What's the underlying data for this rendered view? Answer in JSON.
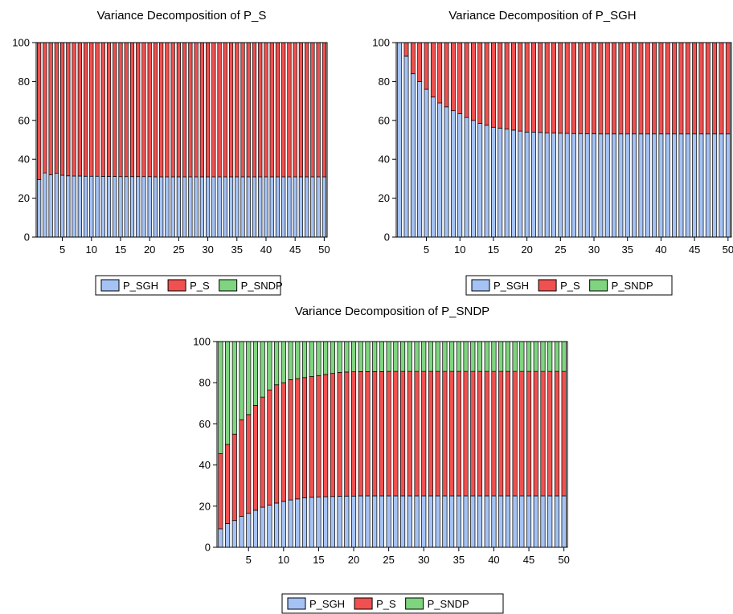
{
  "colors": {
    "P_SGH": "#a4c2f4",
    "P_S": "#f05050",
    "P_SNDP": "#7fd47f"
  },
  "chart_data": [
    {
      "type": "bar",
      "stacked": true,
      "title": "Variance Decomposition of P_S",
      "x": [
        1,
        2,
        3,
        4,
        5,
        6,
        7,
        8,
        9,
        10,
        11,
        12,
        13,
        14,
        15,
        16,
        17,
        18,
        19,
        20,
        21,
        22,
        23,
        24,
        25,
        26,
        27,
        28,
        29,
        30,
        31,
        32,
        33,
        34,
        35,
        36,
        37,
        38,
        39,
        40,
        41,
        42,
        43,
        44,
        45,
        46,
        47,
        48,
        49,
        50
      ],
      "xticks": [
        "5",
        "10",
        "15",
        "20",
        "25",
        "30",
        "35",
        "40",
        "45",
        "50"
      ],
      "yticks": [
        "0",
        "20",
        "40",
        "60",
        "80",
        "100"
      ],
      "ylim": [
        0,
        100
      ],
      "legend": [
        "P_SGH",
        "P_S",
        "P_SNDP"
      ],
      "series": [
        {
          "name": "P_SGH",
          "values": [
            29.5,
            33,
            32,
            32.8,
            31.8,
            31.5,
            31.4,
            31.4,
            31.3,
            31.3,
            31.3,
            31.2,
            31.2,
            31.2,
            31.1,
            31.1,
            31.1,
            31.1,
            31.1,
            31.1,
            31.0,
            31.0,
            31.0,
            31.0,
            31.0,
            31.0,
            31.0,
            31.0,
            31.0,
            31.0,
            31.0,
            31.0,
            31.0,
            31.0,
            31.0,
            31.0,
            31.0,
            31.0,
            31.0,
            31.0,
            31.0,
            31.0,
            31.0,
            31.0,
            31.0,
            31.0,
            31.0,
            31.0,
            31.0,
            31.0
          ]
        },
        {
          "name": "P_S",
          "values": [
            70.5,
            67,
            68,
            67.2,
            68.2,
            68.5,
            68.6,
            68.6,
            68.7,
            68.7,
            68.7,
            68.8,
            68.8,
            68.8,
            68.9,
            68.9,
            68.9,
            68.9,
            68.9,
            68.9,
            69.0,
            69.0,
            69.0,
            69.0,
            69.0,
            69.0,
            69.0,
            69.0,
            69.0,
            69.0,
            69.0,
            69.0,
            69.0,
            69.0,
            69.0,
            69.0,
            69.0,
            69.0,
            69.0,
            69.0,
            69.0,
            69.0,
            69.0,
            69.0,
            69.0,
            69.0,
            69.0,
            69.0,
            69.0,
            69.0
          ]
        },
        {
          "name": "P_SNDP",
          "values": [
            0,
            0,
            0,
            0,
            0,
            0,
            0,
            0,
            0,
            0,
            0,
            0,
            0,
            0,
            0,
            0,
            0,
            0,
            0,
            0,
            0,
            0,
            0,
            0,
            0,
            0,
            0,
            0,
            0,
            0,
            0,
            0,
            0,
            0,
            0,
            0,
            0,
            0,
            0,
            0,
            0,
            0,
            0,
            0,
            0,
            0,
            0,
            0,
            0,
            0
          ]
        }
      ]
    },
    {
      "type": "bar",
      "stacked": true,
      "title": "Variance Decomposition of P_SGH",
      "x": [
        1,
        2,
        3,
        4,
        5,
        6,
        7,
        8,
        9,
        10,
        11,
        12,
        13,
        14,
        15,
        16,
        17,
        18,
        19,
        20,
        21,
        22,
        23,
        24,
        25,
        26,
        27,
        28,
        29,
        30,
        31,
        32,
        33,
        34,
        35,
        36,
        37,
        38,
        39,
        40,
        41,
        42,
        43,
        44,
        45,
        46,
        47,
        48,
        49,
        50
      ],
      "xticks": [
        "5",
        "10",
        "15",
        "20",
        "25",
        "30",
        "35",
        "40",
        "45",
        "50"
      ],
      "yticks": [
        "0",
        "20",
        "40",
        "60",
        "80",
        "100"
      ],
      "ylim": [
        0,
        100
      ],
      "legend": [
        "P_SGH",
        "P_S",
        "P_SNDP"
      ],
      "series": [
        {
          "name": "P_SGH",
          "values": [
            100,
            93,
            84,
            80,
            76,
            72,
            69,
            67,
            65,
            63.5,
            61.5,
            60,
            58.5,
            57.5,
            56.5,
            56,
            55.5,
            55,
            54.5,
            54,
            54,
            53.8,
            53.6,
            53.5,
            53.4,
            53.3,
            53.2,
            53.2,
            53.1,
            53.1,
            53.0,
            53.0,
            53.0,
            53.0,
            53.0,
            53.0,
            53.0,
            53.0,
            53.0,
            53.0,
            53.0,
            53.0,
            53.0,
            53.0,
            53.0,
            53.0,
            53.0,
            53.0,
            53.0,
            53.0
          ]
        },
        {
          "name": "P_S",
          "values": [
            0,
            7,
            16,
            20,
            24,
            28,
            31,
            33,
            35,
            36.5,
            38.5,
            40,
            41.5,
            42.5,
            43.5,
            44,
            44.5,
            45,
            45.5,
            46,
            46,
            46.2,
            46.4,
            46.5,
            46.6,
            46.7,
            46.8,
            46.8,
            46.9,
            46.9,
            47.0,
            47.0,
            47.0,
            47.0,
            47.0,
            47.0,
            47.0,
            47.0,
            47.0,
            47.0,
            47.0,
            47.0,
            47.0,
            47.0,
            47.0,
            47.0,
            47.0,
            47.0,
            47.0,
            47.0
          ]
        },
        {
          "name": "P_SNDP",
          "values": [
            0,
            0,
            0,
            0,
            0,
            0,
            0,
            0,
            0,
            0,
            0,
            0,
            0,
            0,
            0,
            0,
            0,
            0,
            0,
            0,
            0,
            0,
            0,
            0,
            0,
            0,
            0,
            0,
            0,
            0,
            0,
            0,
            0,
            0,
            0,
            0,
            0,
            0,
            0,
            0,
            0,
            0,
            0,
            0,
            0,
            0,
            0,
            0,
            0,
            0
          ]
        }
      ]
    },
    {
      "type": "bar",
      "stacked": true,
      "title": "Variance Decomposition of P_SNDP",
      "x": [
        1,
        2,
        3,
        4,
        5,
        6,
        7,
        8,
        9,
        10,
        11,
        12,
        13,
        14,
        15,
        16,
        17,
        18,
        19,
        20,
        21,
        22,
        23,
        24,
        25,
        26,
        27,
        28,
        29,
        30,
        31,
        32,
        33,
        34,
        35,
        36,
        37,
        38,
        39,
        40,
        41,
        42,
        43,
        44,
        45,
        46,
        47,
        48,
        49,
        50
      ],
      "xticks": [
        "5",
        "10",
        "15",
        "20",
        "25",
        "30",
        "35",
        "40",
        "45",
        "50"
      ],
      "yticks": [
        "0",
        "20",
        "40",
        "60",
        "80",
        "100"
      ],
      "ylim": [
        0,
        100
      ],
      "legend": [
        "P_SGH",
        "P_S",
        "P_SNDP"
      ],
      "series": [
        {
          "name": "P_SGH",
          "values": [
            9,
            11.5,
            13,
            15,
            16.5,
            18,
            19.5,
            20.5,
            21.5,
            22.3,
            23,
            23.5,
            24,
            24.3,
            24.5,
            24.6,
            24.7,
            24.8,
            24.9,
            24.9,
            25,
            25,
            25,
            25,
            25,
            25,
            25,
            25,
            25,
            25,
            25,
            25,
            25,
            25,
            25,
            25,
            25,
            25,
            25,
            25,
            25,
            25,
            25,
            25,
            25,
            25,
            25,
            25,
            25,
            25
          ]
        },
        {
          "name": "P_S",
          "values": [
            36.5,
            38.5,
            42,
            47,
            48,
            51,
            53.5,
            56,
            57.5,
            57.7,
            58.5,
            58.5,
            58.5,
            58.7,
            59,
            59.4,
            59.8,
            60.2,
            60.3,
            60.4,
            60.4,
            60.4,
            60.4,
            60.4,
            60.5,
            60.5,
            60.5,
            60.5,
            60.5,
            60.5,
            60.5,
            60.5,
            60.5,
            60.5,
            60.5,
            60.5,
            60.5,
            60.5,
            60.5,
            60.5,
            60.5,
            60.5,
            60.5,
            60.5,
            60.5,
            60.5,
            60.5,
            60.5,
            60.5,
            60.5
          ]
        },
        {
          "name": "P_SNDP",
          "values": [
            54.5,
            50,
            45,
            38,
            35.5,
            31,
            27,
            23.5,
            21,
            20,
            18.5,
            18,
            17.5,
            17,
            16.5,
            16,
            15.5,
            15,
            14.8,
            14.7,
            14.6,
            14.6,
            14.6,
            14.6,
            14.5,
            14.5,
            14.5,
            14.5,
            14.5,
            14.5,
            14.5,
            14.5,
            14.5,
            14.5,
            14.5,
            14.5,
            14.5,
            14.5,
            14.5,
            14.5,
            14.5,
            14.5,
            14.5,
            14.5,
            14.5,
            14.5,
            14.5,
            14.5,
            14.5,
            14.5
          ]
        }
      ]
    }
  ]
}
